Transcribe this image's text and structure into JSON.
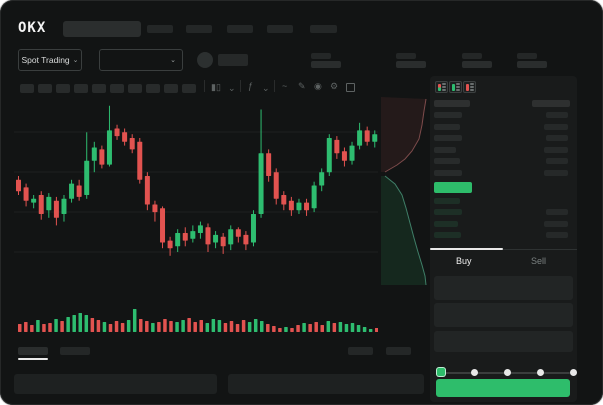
{
  "header": {
    "logo": "OKX"
  },
  "market_selector": {
    "label": "Spot Trading"
  },
  "icons": {
    "chevron": "⌄",
    "indicators": "ƒ",
    "line_tool": "~",
    "draw": "✎",
    "camera": "◉",
    "settings": "⚙"
  },
  "toolbar": {
    "timeframe_slots": 10
  },
  "order_book": {
    "asks": [
      {
        "l": 28,
        "r": 22
      },
      {
        "l": 26,
        "r": 24
      },
      {
        "l": 28,
        "r": 22
      },
      {
        "l": 22,
        "r": 24
      },
      {
        "l": 26,
        "r": 22
      },
      {
        "l": 28,
        "r": 24
      }
    ],
    "bids": [
      {
        "l": 26,
        "r": 0
      },
      {
        "l": 28,
        "r": 22
      },
      {
        "l": 24,
        "r": 24
      },
      {
        "l": 27,
        "r": 22
      }
    ],
    "tabs": {
      "buy": "Buy",
      "sell": "Sell"
    },
    "slider_stops": 5
  },
  "colors": {
    "up": "#2ebd70",
    "down": "#e25350",
    "buy_button": "#2ebd6b",
    "bid_row_tint": "#1d2f26",
    "book_bar": "#282b2b",
    "grid": "#1e2020"
  },
  "chart_data": {
    "type": "candlestick",
    "title": "",
    "xlabel": "",
    "ylabel": "",
    "axis_labels_visible": false,
    "value_scale": "normalized 0-100 (no numeric axis labels rendered in screenshot)",
    "grid": true,
    "candles_ochl": [
      [
        58,
        52,
        60,
        50
      ],
      [
        54,
        47,
        56,
        44
      ],
      [
        46,
        48,
        50,
        43
      ],
      [
        50,
        40,
        52,
        37
      ],
      [
        42,
        49,
        51,
        38
      ],
      [
        47,
        38,
        49,
        34
      ],
      [
        40,
        48,
        50,
        36
      ],
      [
        48,
        56,
        58,
        46
      ],
      [
        55,
        49,
        58,
        47
      ],
      [
        50,
        68,
        83,
        48
      ],
      [
        68,
        75,
        78,
        62
      ],
      [
        74,
        66,
        76,
        64
      ],
      [
        66,
        84,
        97,
        65
      ],
      [
        85,
        81,
        87,
        79
      ],
      [
        83,
        78,
        85,
        76
      ],
      [
        80,
        74,
        82,
        72
      ],
      [
        78,
        58,
        80,
        56
      ],
      [
        60,
        45,
        62,
        42
      ],
      [
        45,
        41,
        47,
        36
      ],
      [
        43,
        25,
        44,
        22
      ],
      [
        26,
        22,
        28,
        18
      ],
      [
        23,
        30,
        32,
        20
      ],
      [
        30,
        26,
        33,
        23
      ],
      [
        27,
        31,
        34,
        25
      ],
      [
        30,
        34,
        36,
        27
      ],
      [
        33,
        24,
        35,
        20
      ],
      [
        25,
        29,
        31,
        22
      ],
      [
        28,
        23,
        30,
        19
      ],
      [
        24,
        32,
        34,
        21
      ],
      [
        32,
        28,
        33,
        25
      ],
      [
        29,
        24,
        31,
        21
      ],
      [
        25,
        40,
        42,
        23
      ],
      [
        40,
        72,
        95,
        38
      ],
      [
        72,
        60,
        74,
        57
      ],
      [
        62,
        48,
        64,
        45
      ],
      [
        50,
        45,
        52,
        42
      ],
      [
        47,
        42,
        49,
        39
      ],
      [
        42,
        46,
        48,
        40
      ],
      [
        46,
        42,
        48,
        39
      ],
      [
        43,
        55,
        57,
        41
      ],
      [
        55,
        62,
        64,
        52
      ],
      [
        62,
        80,
        82,
        60
      ],
      [
        79,
        72,
        81,
        69
      ],
      [
        73,
        68,
        75,
        65
      ],
      [
        68,
        76,
        78,
        66
      ],
      [
        76,
        84,
        88,
        74
      ],
      [
        84,
        78,
        86,
        76
      ],
      [
        78,
        82,
        84,
        75
      ]
    ],
    "volume": [
      [
        8,
        "r"
      ],
      [
        10,
        "r"
      ],
      [
        7,
        "r"
      ],
      [
        12,
        "g"
      ],
      [
        8,
        "r"
      ],
      [
        9,
        "r"
      ],
      [
        13,
        "g"
      ],
      [
        11,
        "r"
      ],
      [
        15,
        "g"
      ],
      [
        17,
        "g"
      ],
      [
        19,
        "g"
      ],
      [
        17,
        "g"
      ],
      [
        14,
        "r"
      ],
      [
        12,
        "r"
      ],
      [
        10,
        "g"
      ],
      [
        8,
        "r"
      ],
      [
        11,
        "r"
      ],
      [
        9,
        "r"
      ],
      [
        12,
        "g"
      ],
      [
        23,
        "g"
      ],
      [
        13,
        "r"
      ],
      [
        11,
        "r"
      ],
      [
        9,
        "g"
      ],
      [
        10,
        "r"
      ],
      [
        13,
        "r"
      ],
      [
        11,
        "r"
      ],
      [
        10,
        "g"
      ],
      [
        12,
        "g"
      ],
      [
        14,
        "r"
      ],
      [
        10,
        "r"
      ],
      [
        12,
        "r"
      ],
      [
        9,
        "g"
      ],
      [
        13,
        "g"
      ],
      [
        12,
        "g"
      ],
      [
        9,
        "r"
      ],
      [
        11,
        "r"
      ],
      [
        8,
        "r"
      ],
      [
        12,
        "r"
      ],
      [
        10,
        "g"
      ],
      [
        13,
        "g"
      ],
      [
        11,
        "g"
      ],
      [
        8,
        "r"
      ],
      [
        6,
        "r"
      ],
      [
        4,
        "r"
      ],
      [
        5,
        "g"
      ],
      [
        4,
        "r"
      ],
      [
        7,
        "r"
      ],
      [
        9,
        "g"
      ],
      [
        8,
        "r"
      ],
      [
        10,
        "r"
      ],
      [
        7,
        "r"
      ],
      [
        11,
        "g"
      ],
      [
        9,
        "r"
      ],
      [
        10,
        "g"
      ],
      [
        8,
        "g"
      ],
      [
        9,
        "g"
      ],
      [
        7,
        "g"
      ],
      [
        5,
        "g"
      ],
      [
        3,
        "g"
      ],
      [
        4,
        "r"
      ]
    ],
    "depth": {
      "orientation": "vertical",
      "asks_line": [
        [
          47,
          4
        ],
        [
          45,
          16
        ],
        [
          43,
          30
        ],
        [
          40,
          44
        ],
        [
          33,
          56
        ],
        [
          26,
          64
        ],
        [
          18,
          70
        ],
        [
          6,
          77
        ]
      ],
      "bids_line": [
        [
          6,
          81
        ],
        [
          16,
          89
        ],
        [
          23,
          100
        ],
        [
          27,
          113
        ],
        [
          31,
          128
        ],
        [
          35,
          143
        ],
        [
          39,
          157
        ],
        [
          43,
          170
        ],
        [
          46,
          181
        ],
        [
          47,
          190
        ]
      ]
    }
  }
}
